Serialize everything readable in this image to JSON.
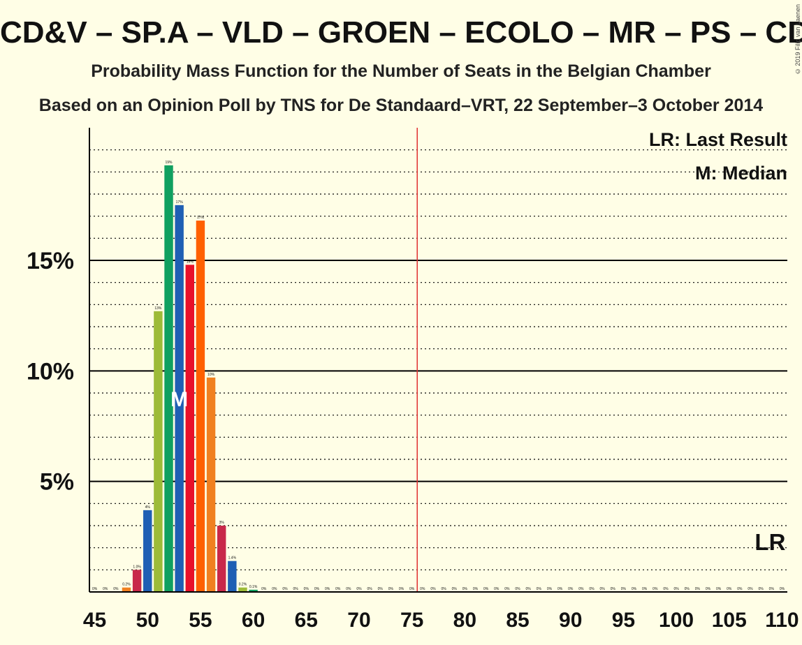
{
  "title": "CD&V – SP.A – VLD – GROEN – ECOLO – MR – PS – CDH",
  "subtitle1": "Probability Mass Function for the Number of Seats in the Belgian Chamber",
  "subtitle2": "Based on an Opinion Poll by TNS for De Standaard–VRT, 22 September–3 October 2014",
  "copyright": "© 2019 Filip van Laenen",
  "legend": {
    "last_result": "LR: Last Result",
    "median": "M: Median"
  },
  "lr_marker": "LR",
  "median_marker": "M",
  "colors": {
    "background": "#FFFEE6",
    "majority_line": "#E03030",
    "bars": [
      "#1F5FB4",
      "#9DBB38",
      "#10A060",
      "#1F5FB4",
      "#E8102A",
      "#FF6000",
      "#F08020",
      "#C8284A",
      "#1F5FB4",
      "#9DBB38",
      "#10A060"
    ]
  },
  "chart_data": {
    "type": "bar",
    "x": [
      45,
      46,
      47,
      48,
      49,
      50,
      51,
      52,
      53,
      54,
      55,
      56,
      57,
      58,
      59,
      60,
      61,
      62,
      63,
      64,
      65,
      66,
      67,
      68,
      69,
      70,
      71,
      72,
      73,
      74,
      75,
      76,
      77,
      78,
      79,
      80,
      81,
      82,
      83,
      84,
      85,
      86,
      87,
      88,
      89,
      90,
      91,
      92,
      93,
      94,
      95,
      96,
      97,
      98,
      99,
      100,
      101,
      102,
      103,
      104,
      105,
      106,
      107,
      108,
      109,
      110
    ],
    "values": [
      0,
      0,
      0,
      0.2,
      1.0,
      3.7,
      12.7,
      19.3,
      17.5,
      14.8,
      16.8,
      9.7,
      3.0,
      1.4,
      0.2,
      0.1,
      0,
      0,
      0,
      0,
      0,
      0,
      0,
      0,
      0,
      0,
      0,
      0,
      0,
      0,
      0,
      0,
      0,
      0,
      0,
      0,
      0,
      0,
      0,
      0,
      0,
      0,
      0,
      0,
      0,
      0,
      0,
      0,
      0,
      0,
      0,
      0,
      0,
      0,
      0,
      0,
      0,
      0,
      0,
      0,
      0,
      0,
      0,
      0,
      0,
      0
    ],
    "labels": [
      "0%",
      "0%",
      "0%",
      "0.2%",
      "1.0%",
      "4%",
      "13%",
      "19%",
      "17%",
      "15%",
      "17%",
      "10%",
      "3%",
      "1.4%",
      "0.2%",
      "0.1%",
      "0%",
      "0%",
      "0%",
      "0%",
      "0%",
      "0%",
      "0%",
      "0%",
      "0%",
      "0%",
      "0%",
      "0%",
      "0%",
      "0%",
      "0%",
      "0%",
      "0%",
      "0%",
      "0%",
      "0%",
      "0%",
      "0%",
      "0%",
      "0%",
      "0%",
      "0%",
      "0%",
      "0%",
      "0%",
      "0%",
      "0%",
      "0%",
      "0%",
      "0%",
      "0%",
      "0%",
      "0%",
      "0%",
      "0%",
      "0%",
      "0%",
      "0%",
      "0%",
      "0%",
      "0%",
      "0%",
      "0%",
      "0%",
      "0%",
      "0%"
    ],
    "bar_colors": [
      "#9DBB38",
      "#10A060",
      "#1F5FB4",
      "#F08020",
      "#C8284A",
      "#1F5FB4",
      "#9DBB38",
      "#10A060",
      "#1F5FB4",
      "#E8102A",
      "#FF6000",
      "#F08020",
      "#C8284A",
      "#1F5FB4",
      "#9DBB38",
      "#10A060"
    ],
    "xticks": [
      45,
      50,
      55,
      60,
      65,
      70,
      75,
      80,
      85,
      90,
      95,
      100,
      105,
      110
    ],
    "xtick_labels": [
      "45",
      "50",
      "55",
      "60",
      "65",
      "70",
      "75",
      "80",
      "85",
      "90",
      "95",
      "100",
      "105",
      "110"
    ],
    "yticks": [
      5,
      10,
      15
    ],
    "ytick_labels": [
      "5%",
      "10%",
      "15%"
    ],
    "ylim": [
      0,
      21
    ],
    "xlim": [
      44.5,
      110.5
    ],
    "majority_seat": 76,
    "median_seat": 53,
    "last_result_seat": 110,
    "grid": "dotted minor every 1%, solid major every 5%"
  }
}
